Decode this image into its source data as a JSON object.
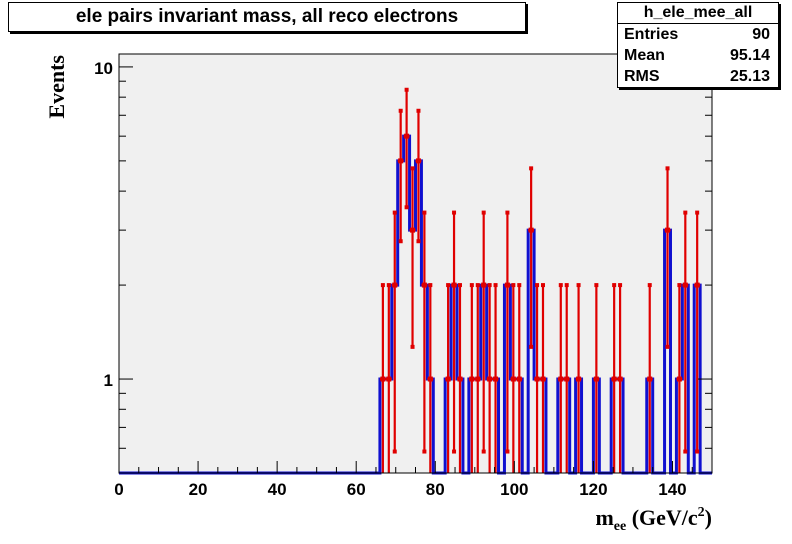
{
  "title": "ele pairs invariant mass, all reco electrons",
  "stats": {
    "name": "h_ele_mee_all",
    "rows": [
      {
        "label": "Entries",
        "value": "90"
      },
      {
        "label": "Mean",
        "value": "95.14"
      },
      {
        "label": "RMS",
        "value": "25.13"
      }
    ]
  },
  "chart_data": {
    "type": "bar",
    "histogram": true,
    "bin_width": 1.5,
    "x_start": 0,
    "xlim": [
      0,
      150
    ],
    "ylim": [
      0.5,
      11
    ],
    "yscale": "log",
    "xticks": [
      0,
      20,
      40,
      60,
      80,
      100,
      120,
      140
    ],
    "yticks": [
      1,
      10
    ],
    "xlabel": "m",
    "xlabel_sub": "ee",
    "xlabel_units": " (GeV/c",
    "xlabel_sup": "2",
    "xlabel_end": ")",
    "ylabel": "Events",
    "grid": false,
    "colors": {
      "bars": "#1010d0",
      "errors": "#e00000",
      "frame_bg": "#f0f0f0"
    },
    "bins": [
      {
        "x": 66.75,
        "y": 1
      },
      {
        "x": 68.25,
        "y": 1
      },
      {
        "x": 69.75,
        "y": 2
      },
      {
        "x": 71.25,
        "y": 5
      },
      {
        "x": 72.75,
        "y": 6
      },
      {
        "x": 74.25,
        "y": 3
      },
      {
        "x": 75.75,
        "y": 5
      },
      {
        "x": 77.25,
        "y": 2
      },
      {
        "x": 78.75,
        "y": 1
      },
      {
        "x": 83.25,
        "y": 1
      },
      {
        "x": 84.75,
        "y": 2
      },
      {
        "x": 86.25,
        "y": 1
      },
      {
        "x": 89.25,
        "y": 1
      },
      {
        "x": 90.75,
        "y": 1
      },
      {
        "x": 92.25,
        "y": 2
      },
      {
        "x": 93.75,
        "y": 1
      },
      {
        "x": 95.25,
        "y": 1
      },
      {
        "x": 98.25,
        "y": 2
      },
      {
        "x": 99.75,
        "y": 1
      },
      {
        "x": 101.25,
        "y": 1
      },
      {
        "x": 104.25,
        "y": 3
      },
      {
        "x": 105.75,
        "y": 1
      },
      {
        "x": 107.25,
        "y": 1
      },
      {
        "x": 111.75,
        "y": 1
      },
      {
        "x": 113.25,
        "y": 1
      },
      {
        "x": 116.25,
        "y": 1
      },
      {
        "x": 120.75,
        "y": 1
      },
      {
        "x": 125.25,
        "y": 1
      },
      {
        "x": 126.75,
        "y": 1
      },
      {
        "x": 134.25,
        "y": 1
      },
      {
        "x": 138.75,
        "y": 3
      },
      {
        "x": 141.75,
        "y": 1
      },
      {
        "x": 143.25,
        "y": 2
      },
      {
        "x": 146.25,
        "y": 2
      }
    ]
  }
}
